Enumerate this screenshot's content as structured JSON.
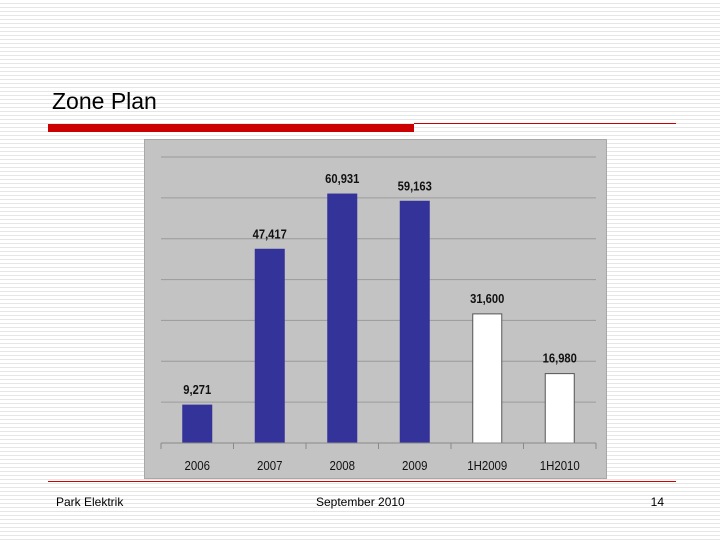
{
  "slide": {
    "title": "Zone Plan",
    "footer_left": "Park Elektrik",
    "footer_center": "September 2010",
    "page_number": "14"
  },
  "colors": {
    "accent_rule": "#cc0000",
    "chart_background": "#c3c3c3",
    "actual_bar": "#333399",
    "projected_bar": "#ffffff",
    "gridline": "#9a9a9a"
  },
  "chart_data": {
    "type": "bar",
    "categories": [
      "2006",
      "2007",
      "2008",
      "2009",
      "1H2009",
      "1H2010"
    ],
    "values": [
      9271,
      47417,
      60931,
      59163,
      31600,
      16980
    ],
    "value_labels": [
      "9,271",
      "47,417",
      "60,931",
      "59,163",
      "31,600",
      "16,980"
    ],
    "bar_styles": [
      "filled",
      "filled",
      "filled",
      "filled",
      "outlined",
      "outlined"
    ],
    "title": "",
    "xlabel": "",
    "ylabel": "",
    "ylim": [
      0,
      70000
    ],
    "y_gridline_step": 10000,
    "y_tick_labels_shown": false,
    "grid": true,
    "legend": "none"
  }
}
